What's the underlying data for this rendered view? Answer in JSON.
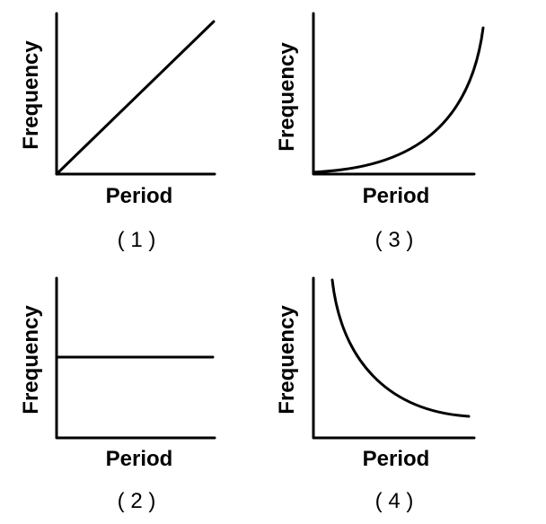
{
  "panels": [
    {
      "number": "( 1 )",
      "xlabel": "Period",
      "ylabel": "Frequency",
      "relationship": "linear-increasing"
    },
    {
      "number": "( 2 )",
      "xlabel": "Period",
      "ylabel": "Frequency",
      "relationship": "constant"
    },
    {
      "number": "( 3 )",
      "xlabel": "Period",
      "ylabel": "Frequency",
      "relationship": "increasing-concave-up"
    },
    {
      "number": "( 4 )",
      "xlabel": "Period",
      "ylabel": "Frequency",
      "relationship": "decreasing-concave-up"
    }
  ],
  "colors": {
    "ink": "#000000",
    "background": "#ffffff"
  }
}
